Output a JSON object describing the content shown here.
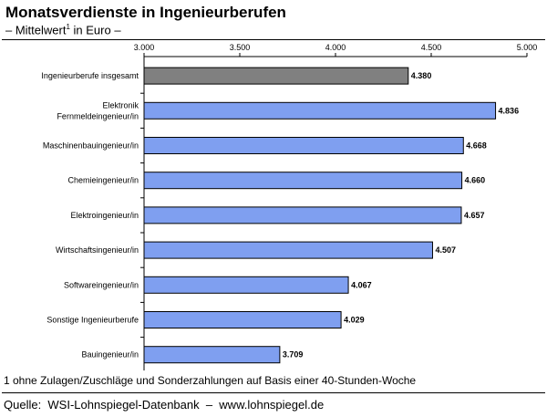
{
  "header": {
    "title": "Monatsverdienste in Ingenieurberufen",
    "subtitle_pre": "– Mittelwert",
    "subtitle_sup": "1",
    "subtitle_post": " in Euro –"
  },
  "footnote": "1 ohne Zulagen/Zuschläge und Sonderzahlungen auf Basis einer 40-Stunden-Woche",
  "source": "Quelle:  WSI-Lohnspiegel-Datenbank  –  www.lohnspiegel.de",
  "chart_data": {
    "type": "bar",
    "orientation": "horizontal",
    "categories": [
      [
        "Ingenieurberufe insgesamt"
      ],
      [
        "Elektronik",
        "Fernmeldeingenieur/in"
      ],
      [
        "Maschinenbauingenieur/in"
      ],
      [
        "Chemieingenieur/in"
      ],
      [
        "Elektroingenieur/in"
      ],
      [
        "Wirtschaftsingenieur/in"
      ],
      [
        "Softwareingenieur/in"
      ],
      [
        "Sonstige Ingenieurberufe"
      ],
      [
        "Bauingenieur/in"
      ]
    ],
    "values": [
      4380,
      4836,
      4668,
      4660,
      4657,
      4507,
      4067,
      4029,
      3709
    ],
    "value_labels": [
      "4.380",
      "4.836",
      "4.668",
      "4.660",
      "4.657",
      "4.507",
      "4.067",
      "4.029",
      "3.709"
    ],
    "xlim": [
      3000,
      5000
    ],
    "xticks": [
      3000,
      3500,
      4000,
      4500,
      5000
    ],
    "xtick_labels": [
      "3.000",
      "3.500",
      "4.000",
      "4.500",
      "5.000"
    ],
    "axis_position": "top",
    "grid": false,
    "colors": {
      "highlight": "#808080",
      "default": "#7f9ff0"
    },
    "highlight_index": 0
  }
}
